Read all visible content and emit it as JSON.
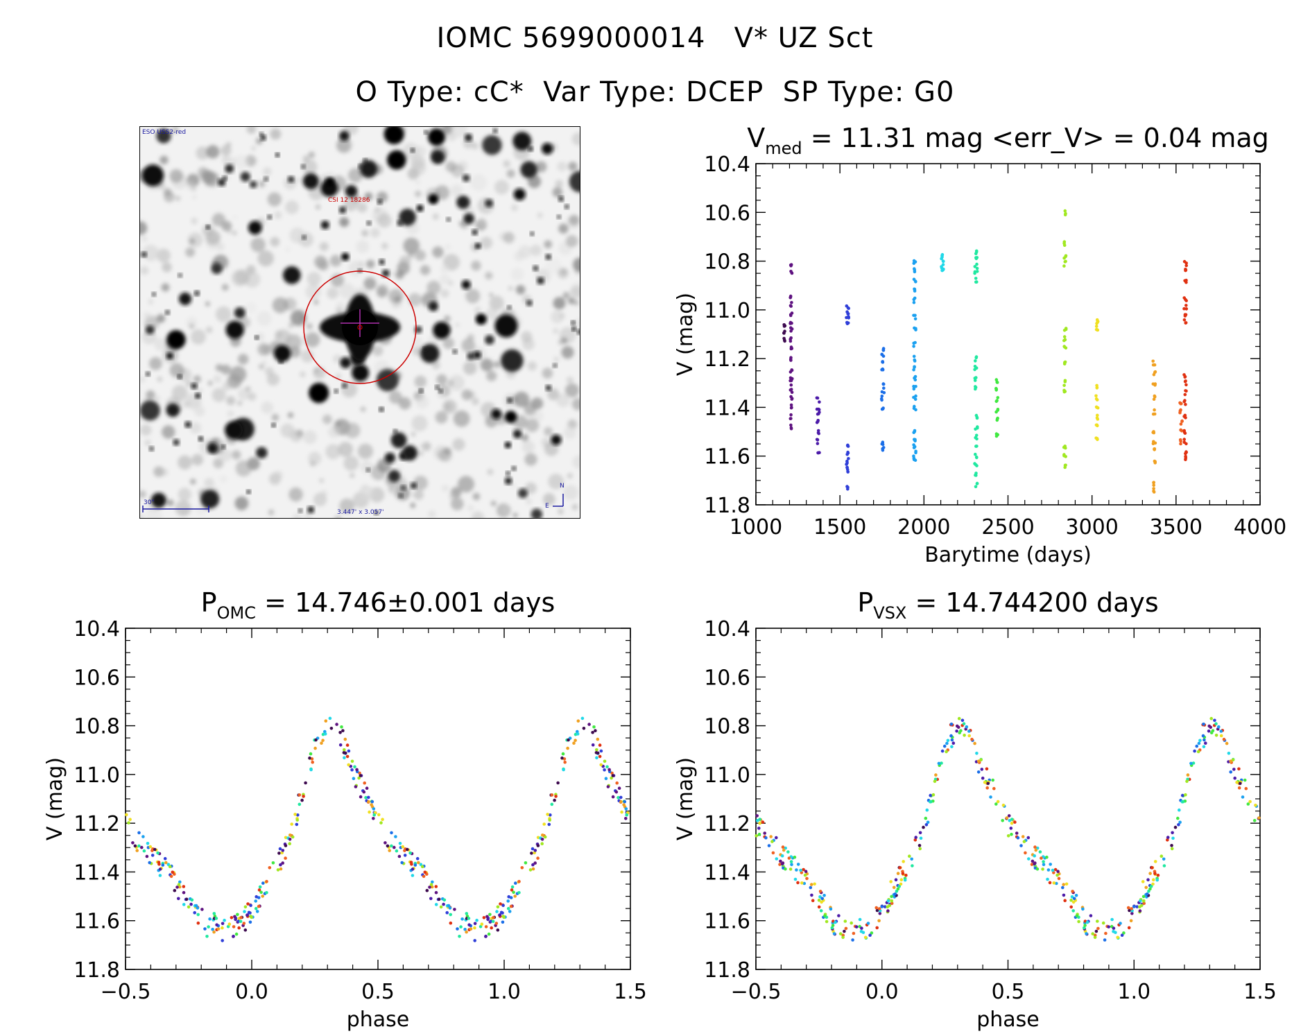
{
  "header": {
    "line1": "IOMC 5699000014   V* UZ Sct",
    "line2": "O Type: cC*  Var Type: DCEP  SP Type: G0"
  },
  "finder_chart": {
    "survey_label": "ESO USS2-red",
    "object_label": "CSI 12 18286",
    "scale_label": "30\"",
    "size_label": "3.447' x 3.057'",
    "north_label": "N",
    "east_label": "E"
  },
  "colors": {
    "axes": "#000000",
    "circle": "#cc0000",
    "scale_bar": "#1a1aa0",
    "epochs": [
      "#3d0a4f",
      "#5e1280",
      "#4b1aa8",
      "#2f3ed8",
      "#1a6ee8",
      "#1aa0f0",
      "#20d8e8",
      "#20e8a0",
      "#40e840",
      "#a0e820",
      "#f0e020",
      "#f0a020",
      "#f06020",
      "#e03010"
    ]
  },
  "chart_data": [
    {
      "id": "lightcurve",
      "type": "scatter",
      "title_main": "V",
      "title_sub": "med",
      "title_rest": " = 11.31 mag <err_V> = 0.04 mag",
      "xlabel": "Barytime (days)",
      "ylabel": "V (mag)",
      "xlim": [
        1000,
        4000
      ],
      "ylim": [
        10.4,
        11.8
      ],
      "y_inverted": true,
      "xticks": [
        1000,
        1500,
        2000,
        2500,
        3000,
        3500,
        4000
      ],
      "xtick_labels": [
        "1000",
        "1500",
        "2000",
        "2500",
        "3000",
        "3500",
        "4000"
      ],
      "yticks": [
        10.4,
        10.6,
        10.8,
        11.0,
        11.2,
        11.4,
        11.6,
        11.8
      ],
      "ytick_labels": [
        "10.4",
        "10.6",
        "10.8",
        "11.0",
        "11.2",
        "11.4",
        "11.6",
        "11.8"
      ],
      "series": [
        {
          "name": "epoch-1",
          "x": 1170,
          "spread": 8,
          "v": [
            11.06,
            11.09,
            11.12
          ]
        },
        {
          "name": "epoch-2",
          "x": 1210,
          "spread": 12,
          "v": [
            10.82,
            10.84,
            10.95,
            10.98,
            11.02,
            11.05,
            11.08,
            11.12,
            11.16,
            11.2,
            11.25,
            11.28,
            11.3,
            11.33,
            11.36,
            11.4,
            11.44,
            11.48
          ]
        },
        {
          "name": "epoch-3",
          "x": 1370,
          "spread": 16,
          "v": [
            11.37,
            11.4,
            11.43,
            11.46,
            11.5,
            11.54,
            11.58
          ]
        },
        {
          "name": "epoch-4",
          "x": 1545,
          "spread": 14,
          "v": [
            10.99,
            11.01,
            11.03,
            11.05,
            11.56,
            11.59,
            11.62,
            11.64,
            11.66,
            11.73
          ]
        },
        {
          "name": "epoch-5",
          "x": 1755,
          "spread": 16,
          "v": [
            11.16,
            11.19,
            11.22,
            11.25,
            11.3,
            11.33,
            11.36,
            11.4,
            11.55,
            11.57
          ]
        },
        {
          "name": "epoch-6",
          "x": 1945,
          "spread": 14,
          "v": [
            10.8,
            10.84,
            10.88,
            10.92,
            10.96,
            11.03,
            11.08,
            11.14,
            11.2,
            11.24,
            11.28,
            11.32,
            11.36,
            11.4,
            11.5,
            11.53,
            11.56,
            11.59,
            11.61
          ]
        },
        {
          "name": "epoch-7",
          "x": 2110,
          "spread": 12,
          "v": [
            10.78,
            10.8,
            10.82,
            10.84
          ]
        },
        {
          "name": "epoch-8",
          "x": 2310,
          "spread": 16,
          "v": [
            10.76,
            10.79,
            10.82,
            10.85,
            10.88,
            11.2,
            11.24,
            11.28,
            11.32,
            11.44,
            11.48,
            11.52,
            11.56,
            11.6,
            11.64,
            11.68,
            11.72
          ]
        },
        {
          "name": "epoch-9",
          "x": 2435,
          "spread": 12,
          "v": [
            11.29,
            11.33,
            11.37,
            11.41,
            11.45,
            11.51
          ]
        },
        {
          "name": "epoch-10",
          "x": 2840,
          "spread": 14,
          "v": [
            10.6,
            10.73,
            10.78,
            10.81,
            11.08,
            11.12,
            11.16,
            11.22,
            11.3,
            11.34,
            11.56,
            11.6,
            11.64
          ]
        },
        {
          "name": "epoch-11",
          "x": 3030,
          "spread": 12,
          "v": [
            11.04,
            11.06,
            11.08,
            11.32,
            11.36,
            11.4,
            11.44,
            11.48,
            11.53
          ]
        },
        {
          "name": "epoch-12",
          "x": 3370,
          "spread": 14,
          "v": [
            11.22,
            11.26,
            11.3,
            11.36,
            11.42,
            11.5,
            11.54,
            11.58,
            11.62,
            11.71,
            11.74
          ]
        },
        {
          "name": "epoch-13",
          "x": 3530,
          "spread": 14,
          "v": [
            11.38,
            11.42,
            11.46,
            11.5,
            11.54
          ]
        },
        {
          "name": "epoch-14",
          "x": 3555,
          "spread": 14,
          "v": [
            10.81,
            10.84,
            10.88,
            10.96,
            10.99,
            11.02,
            11.05,
            11.27,
            11.3,
            11.34,
            11.38,
            11.44,
            11.5,
            11.54,
            11.58,
            11.61
          ]
        }
      ]
    },
    {
      "id": "phase-omc",
      "type": "scatter",
      "title_main": "P",
      "title_sub": "OMC",
      "title_rest": " = 14.746±0.001 days",
      "xlabel": "phase",
      "ylabel": "V (mag)",
      "xlim": [
        -0.5,
        1.5
      ],
      "ylim": [
        10.4,
        11.8
      ],
      "y_inverted": true,
      "xticks": [
        -0.5,
        0.0,
        0.5,
        1.0,
        1.5
      ],
      "xtick_labels": [
        "−0.5",
        "0.0",
        "0.5",
        "1.0",
        "1.5"
      ],
      "yticks": [
        10.4,
        10.6,
        10.8,
        11.0,
        11.2,
        11.4,
        11.6,
        11.8
      ],
      "ytick_labels": [
        "10.4",
        "10.6",
        "10.8",
        "11.0",
        "11.2",
        "11.4",
        "11.6",
        "11.8"
      ],
      "curve": {
        "phase": [
          0.0,
          0.05,
          0.1,
          0.15,
          0.2,
          0.25,
          0.3,
          0.33,
          0.36,
          0.4,
          0.45,
          0.5,
          0.55,
          0.6,
          0.65,
          0.7,
          0.75,
          0.8,
          0.82,
          0.85,
          0.9,
          0.95,
          1.0
        ],
        "v": [
          11.56,
          11.46,
          11.37,
          11.27,
          11.08,
          10.88,
          10.8,
          10.79,
          10.86,
          11.0,
          11.08,
          11.2,
          11.27,
          11.33,
          11.38,
          11.45,
          11.52,
          11.58,
          11.63,
          11.62,
          11.64,
          11.62,
          11.56
        ]
      },
      "scatter_mag": 0.05,
      "points_per_cycle": 240,
      "seed": 7
    },
    {
      "id": "phase-vsx",
      "type": "scatter",
      "title_main": "P",
      "title_sub": "VSX",
      "title_rest": " = 14.744200 days",
      "xlabel": "phase",
      "ylabel": "V (mag)",
      "xlim": [
        -0.5,
        1.5
      ],
      "ylim": [
        10.4,
        11.8
      ],
      "y_inverted": true,
      "xticks": [
        -0.5,
        0.0,
        0.5,
        1.0,
        1.5
      ],
      "xtick_labels": [
        "−0.5",
        "0.0",
        "0.5",
        "1.0",
        "1.5"
      ],
      "yticks": [
        10.4,
        10.6,
        10.8,
        11.0,
        11.2,
        11.4,
        11.6,
        11.8
      ],
      "ytick_labels": [
        "10.4",
        "10.6",
        "10.8",
        "11.0",
        "11.2",
        "11.4",
        "11.6",
        "11.8"
      ],
      "curve": {
        "phase": [
          0.0,
          0.05,
          0.1,
          0.15,
          0.2,
          0.25,
          0.3,
          0.33,
          0.36,
          0.4,
          0.45,
          0.5,
          0.55,
          0.6,
          0.65,
          0.7,
          0.75,
          0.8,
          0.82,
          0.85,
          0.9,
          0.95,
          1.0
        ],
        "v": [
          11.56,
          11.46,
          11.37,
          11.27,
          11.08,
          10.88,
          10.8,
          10.79,
          10.86,
          11.0,
          11.08,
          11.2,
          11.27,
          11.33,
          11.38,
          11.45,
          11.52,
          11.58,
          11.63,
          11.62,
          11.64,
          11.62,
          11.56
        ]
      },
      "scatter_mag": 0.05,
      "points_per_cycle": 240,
      "seed": 11
    }
  ]
}
